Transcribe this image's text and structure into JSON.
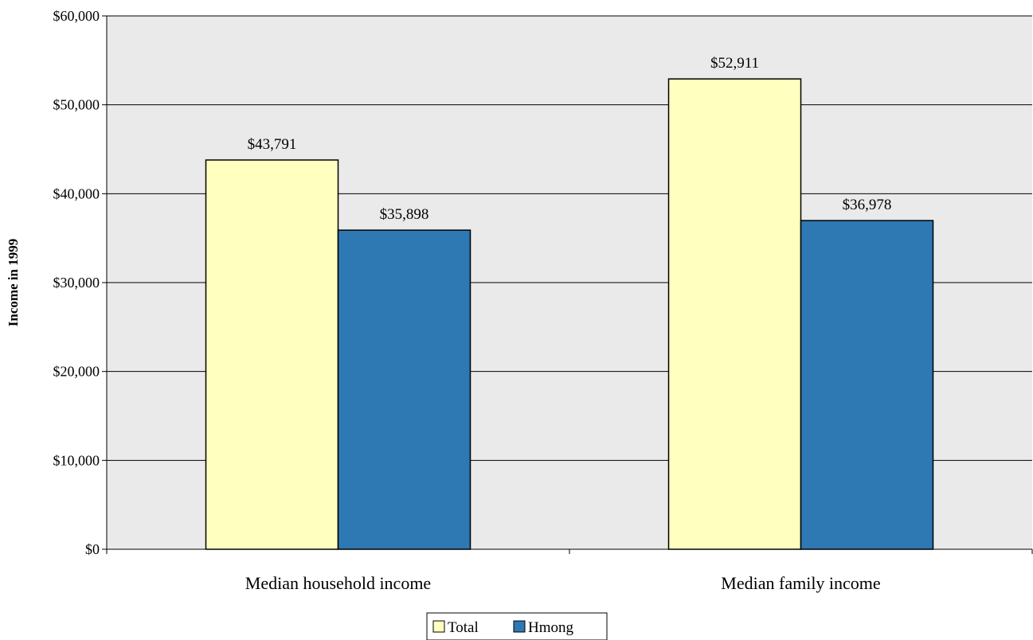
{
  "chart_data": {
    "type": "bar",
    "title": "",
    "xlabel": "",
    "ylabel": "Income in 1999",
    "categories": [
      "Median household income",
      "Median family income"
    ],
    "series": [
      {
        "name": "Total",
        "values": [
          43791,
          52911
        ],
        "color": "#FFFFC0",
        "labels": [
          "$43,791",
          "$52,911"
        ]
      },
      {
        "name": "Hmong",
        "values": [
          35898,
          36978
        ],
        "color": "#2E78B4",
        "labels": [
          "$35,898",
          "$36,978"
        ]
      }
    ],
    "ylim": [
      0,
      60000
    ],
    "yticks": [
      0,
      10000,
      20000,
      30000,
      40000,
      50000,
      60000
    ],
    "ytick_labels": [
      "$0",
      "$10,000",
      "$20,000",
      "$30,000",
      "$40,000",
      "$50,000",
      "$60,000"
    ],
    "grid": true,
    "plot_background": "#EAEAEA",
    "legend_position": "bottom"
  }
}
